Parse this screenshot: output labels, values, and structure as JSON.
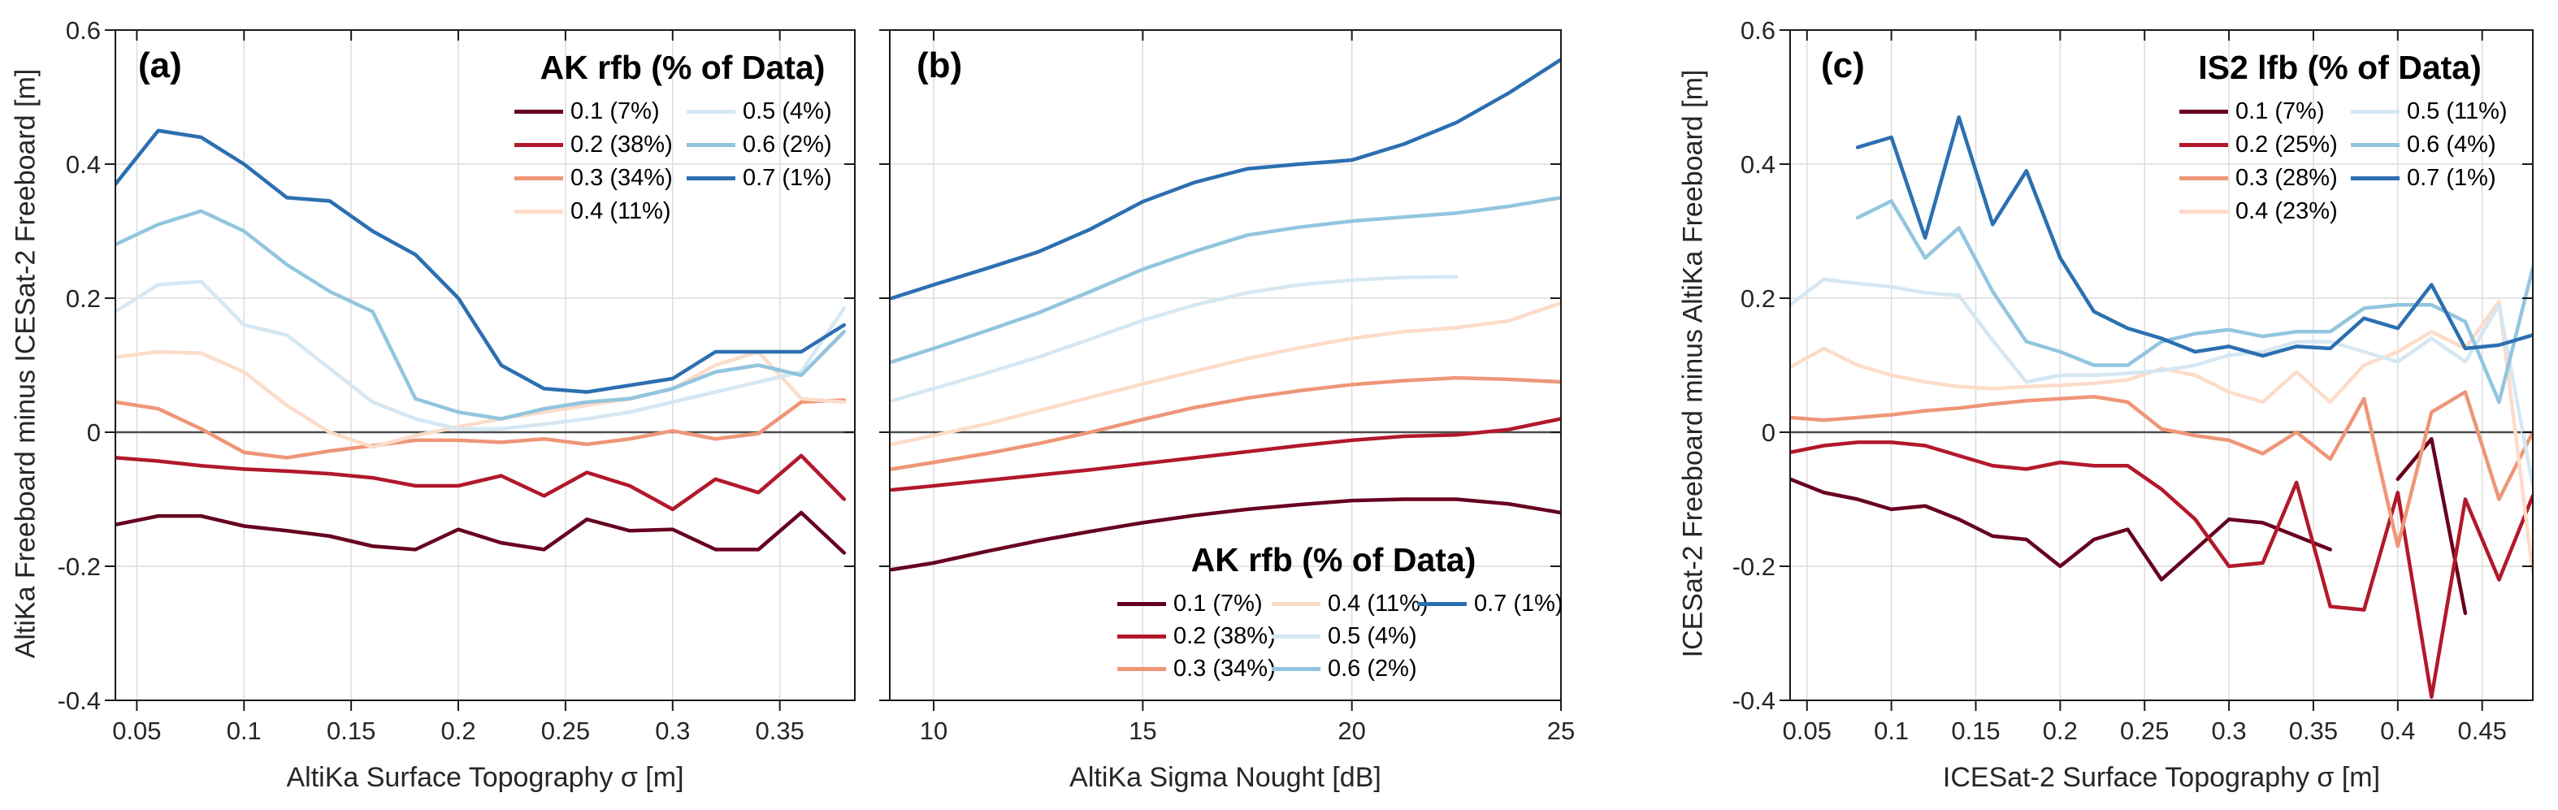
{
  "figure": {
    "background": "#ffffff",
    "frame_color": "#1a1a1a",
    "grid_color": "#dcdcdc",
    "zero_line_color": "#4d4d4d",
    "tick_label_color": "#262626"
  },
  "chart_data": [
    {
      "type": "line",
      "panel_label": "(a)",
      "xlabel": "AltiKa Surface Topography σ [m]",
      "ylabel": "AltiKa Freeboard minus ICESat-2 Freeboard [m]",
      "xlim": [
        0.04,
        0.385
      ],
      "ylim": [
        -0.4,
        0.6
      ],
      "xticks": [
        0.05,
        0.1,
        0.15,
        0.2,
        0.25,
        0.3,
        0.35
      ],
      "xtick_labels": [
        "0.05",
        "0.1",
        "0.15",
        "0.2",
        "0.25",
        "0.3",
        "0.35"
      ],
      "yticks": [
        0.6,
        0.4,
        0.2,
        0,
        -0.2,
        -0.4
      ],
      "ytick_labels": [
        "0.6",
        "0.4",
        "0.2",
        "0",
        "-0.2",
        "-0.4"
      ],
      "grid": true,
      "zero_line": true,
      "legend": {
        "title": "AK rfb (% of Data)",
        "position": "top-right",
        "columns": [
          4,
          3
        ]
      },
      "x": [
        0.04,
        0.06,
        0.08,
        0.1,
        0.12,
        0.14,
        0.16,
        0.18,
        0.2,
        0.22,
        0.24,
        0.26,
        0.28,
        0.3,
        0.32,
        0.34,
        0.36,
        0.38
      ],
      "series": [
        {
          "name": "0.1 (7%)",
          "color": "#67001f",
          "values": [
            -0.138,
            -0.125,
            -0.125,
            -0.14,
            -0.147,
            -0.155,
            -0.17,
            -0.175,
            -0.145,
            -0.165,
            -0.175,
            -0.13,
            -0.147,
            -0.145,
            -0.175,
            -0.175,
            -0.12,
            -0.18
          ]
        },
        {
          "name": "0.2 (38%)",
          "color": "#b2182b",
          "values": [
            -0.038,
            -0.043,
            -0.05,
            -0.055,
            -0.058,
            -0.062,
            -0.068,
            -0.08,
            -0.08,
            -0.065,
            -0.095,
            -0.06,
            -0.08,
            -0.115,
            -0.07,
            -0.09,
            -0.035,
            -0.1
          ]
        },
        {
          "name": "0.3 (34%)",
          "color": "#ee9677",
          "values": [
            0.045,
            0.035,
            0.005,
            -0.03,
            -0.038,
            -0.028,
            -0.02,
            -0.012,
            -0.012,
            -0.015,
            -0.01,
            -0.018,
            -0.01,
            0.002,
            -0.01,
            -0.002,
            0.045,
            0.048
          ]
        },
        {
          "name": "0.4 (11%)",
          "color": "#fcdcc9",
          "values": [
            0.112,
            0.12,
            0.118,
            0.09,
            0.04,
            0.0,
            -0.022,
            -0.005,
            0.008,
            0.02,
            0.03,
            0.04,
            0.05,
            0.065,
            0.1,
            0.12,
            0.05,
            0.045
          ]
        },
        {
          "name": "0.5 (4%)",
          "color": "#d5e7f2",
          "values": [
            0.18,
            0.22,
            0.225,
            0.16,
            0.145,
            0.095,
            0.045,
            0.02,
            0.005,
            0.005,
            0.012,
            0.02,
            0.03,
            0.045,
            0.06,
            0.075,
            0.09,
            0.185
          ]
        },
        {
          "name": "0.6 (2%)",
          "color": "#92c5de",
          "values": [
            0.28,
            0.31,
            0.33,
            0.3,
            0.25,
            0.21,
            0.18,
            0.05,
            0.03,
            0.02,
            0.035,
            0.045,
            0.05,
            0.065,
            0.09,
            0.1,
            0.085,
            0.15
          ]
        },
        {
          "name": "0.7 (1%)",
          "color": "#2c6fb1",
          "values": [
            0.37,
            0.45,
            0.44,
            0.4,
            0.35,
            0.345,
            0.3,
            0.265,
            0.2,
            0.1,
            0.065,
            0.06,
            0.07,
            0.08,
            0.12,
            0.12,
            0.12,
            0.16
          ]
        }
      ]
    },
    {
      "type": "line",
      "panel_label": "(b)",
      "xlabel": "AltiKa Sigma Nought [dB]",
      "ylabel": "",
      "xlim": [
        8.95,
        25
      ],
      "ylim": [
        -0.4,
        0.6
      ],
      "xticks": [
        10,
        15,
        20,
        25
      ],
      "xtick_labels": [
        "10",
        "15",
        "20",
        "25"
      ],
      "yticks": [
        0.6,
        0.4,
        0.2,
        0,
        -0.2,
        -0.4
      ],
      "ytick_labels": [],
      "grid": true,
      "zero_line": true,
      "legend": {
        "title": "AK rfb (% of Data)",
        "position": "bottom-right",
        "columns": [
          3,
          3,
          1
        ]
      },
      "x": [
        9,
        10,
        11.25,
        12.5,
        13.75,
        15,
        16.25,
        17.5,
        18.75,
        20,
        21.25,
        22.5,
        23.75,
        25
      ],
      "series": [
        {
          "name": "0.1 (7%)",
          "color": "#67001f",
          "values": [
            -0.205,
            -0.195,
            -0.178,
            -0.162,
            -0.148,
            -0.135,
            -0.124,
            -0.115,
            -0.108,
            -0.102,
            -0.1,
            -0.1,
            -0.107,
            -0.12
          ]
        },
        {
          "name": "0.2 (38%)",
          "color": "#b2182b",
          "values": [
            -0.086,
            -0.08,
            -0.072,
            -0.064,
            -0.056,
            -0.047,
            -0.038,
            -0.029,
            -0.02,
            -0.012,
            -0.006,
            -0.004,
            0.004,
            0.02
          ]
        },
        {
          "name": "0.3 (34%)",
          "color": "#ee9677",
          "values": [
            -0.055,
            -0.045,
            -0.032,
            -0.017,
            0.0,
            0.019,
            0.037,
            0.051,
            0.062,
            0.071,
            0.077,
            0.081,
            0.079,
            0.075
          ]
        },
        {
          "name": "0.4 (11%)",
          "color": "#fcdcc9",
          "values": [
            -0.018,
            -0.005,
            0.012,
            0.032,
            0.052,
            0.072,
            0.091,
            0.11,
            0.126,
            0.14,
            0.15,
            0.156,
            0.166,
            0.193
          ]
        },
        {
          "name": "0.5 (4%)",
          "color": "#d5e7f2",
          "values": [
            0.047,
            0.065,
            0.088,
            0.112,
            0.139,
            0.167,
            0.19,
            0.208,
            0.22,
            0.227,
            0.231,
            0.232,
            null,
            null
          ]
        },
        {
          "name": "0.6 (2%)",
          "color": "#92c5de",
          "values": [
            0.105,
            0.125,
            0.151,
            0.178,
            0.21,
            0.243,
            0.27,
            0.294,
            0.306,
            0.315,
            0.321,
            0.327,
            0.337,
            0.35
          ]
        },
        {
          "name": "0.7 (1%)",
          "color": "#2c6fb1",
          "values": [
            0.2,
            0.22,
            0.244,
            0.269,
            0.303,
            0.344,
            0.373,
            0.393,
            0.4,
            0.406,
            0.43,
            0.462,
            0.506,
            0.556
          ]
        }
      ]
    },
    {
      "type": "line",
      "panel_label": "(c)",
      "xlabel": "ICESat-2 Surface Topography σ [m]",
      "ylabel": "ICESat-2 Freeboard minus AltiKa Freeboard [m]",
      "xlim": [
        0.04,
        0.48
      ],
      "ylim": [
        -0.4,
        0.6
      ],
      "xticks": [
        0.05,
        0.1,
        0.15,
        0.2,
        0.25,
        0.3,
        0.35,
        0.4,
        0.45
      ],
      "xtick_labels": [
        "0.05",
        "0.1",
        "0.15",
        "0.2",
        "0.25",
        "0.3",
        "0.35",
        "0.4",
        "0.45"
      ],
      "yticks": [
        0.6,
        0.4,
        0.2,
        0,
        -0.2,
        -0.4
      ],
      "ytick_labels": [
        "0.6",
        "0.4",
        "0.2",
        "0",
        "-0.2",
        "-0.4"
      ],
      "grid": true,
      "zero_line": true,
      "legend": {
        "title": "IS2 lfb (% of Data)",
        "position": "top-right",
        "columns": [
          4,
          3
        ]
      },
      "x": [
        0.04,
        0.06,
        0.08,
        0.1,
        0.12,
        0.14,
        0.16,
        0.18,
        0.2,
        0.22,
        0.24,
        0.26,
        0.28,
        0.3,
        0.32,
        0.34,
        0.36,
        0.38,
        0.4,
        0.42,
        0.44,
        0.46,
        0.48
      ],
      "series": [
        {
          "name": "0.1 (7%)",
          "color": "#67001f",
          "values": [
            -0.07,
            -0.09,
            -0.1,
            -0.115,
            -0.11,
            -0.13,
            -0.155,
            -0.16,
            -0.2,
            -0.16,
            -0.145,
            -0.22,
            -0.175,
            -0.13,
            -0.135,
            -0.155,
            -0.175,
            null,
            -0.07,
            -0.01,
            -0.27,
            null,
            null
          ]
        },
        {
          "name": "0.2 (25%)",
          "color": "#b2182b",
          "values": [
            -0.03,
            -0.02,
            -0.015,
            -0.015,
            -0.02,
            -0.035,
            -0.05,
            -0.055,
            -0.045,
            -0.05,
            -0.05,
            -0.085,
            -0.13,
            -0.2,
            -0.195,
            -0.075,
            -0.26,
            -0.265,
            -0.09,
            -0.395,
            -0.1,
            -0.22,
            -0.095
          ]
        },
        {
          "name": "0.3 (28%)",
          "color": "#ee9677",
          "values": [
            0.022,
            0.018,
            0.022,
            0.026,
            0.032,
            0.036,
            0.042,
            0.047,
            0.05,
            0.053,
            0.045,
            0.005,
            -0.005,
            -0.012,
            -0.032,
            0.0,
            -0.04,
            0.05,
            -0.17,
            0.03,
            0.06,
            -0.1,
            0.0
          ]
        },
        {
          "name": "0.4 (23%)",
          "color": "#fcdcc9",
          "values": [
            0.097,
            0.125,
            0.1,
            0.085,
            0.075,
            0.068,
            0.065,
            0.068,
            0.07,
            0.073,
            0.078,
            0.095,
            0.085,
            0.06,
            0.045,
            0.09,
            0.045,
            0.1,
            0.12,
            0.15,
            0.125,
            0.195,
            -0.21
          ]
        },
        {
          "name": "0.5 (11%)",
          "color": "#d5e7f2",
          "values": [
            0.19,
            0.228,
            0.222,
            0.217,
            0.208,
            0.204,
            0.137,
            0.075,
            0.085,
            0.085,
            0.088,
            0.092,
            0.1,
            0.115,
            0.12,
            0.135,
            0.135,
            0.12,
            0.105,
            0.14,
            0.105,
            0.19,
            -0.08
          ]
        },
        {
          "name": "0.6 (4%)",
          "color": "#92c5de",
          "values": [
            null,
            null,
            0.32,
            0.345,
            0.26,
            0.305,
            0.21,
            0.135,
            0.12,
            0.1,
            0.1,
            0.135,
            0.147,
            0.153,
            0.143,
            0.15,
            0.15,
            0.185,
            0.19,
            0.19,
            0.165,
            0.045,
            0.245
          ]
        },
        {
          "name": "0.7 (1%)",
          "color": "#2c6fb1",
          "values": [
            null,
            null,
            0.425,
            0.44,
            0.29,
            0.47,
            0.31,
            0.39,
            0.26,
            0.18,
            0.155,
            0.14,
            0.12,
            0.128,
            0.114,
            0.128,
            0.125,
            0.17,
            0.155,
            0.22,
            0.125,
            0.13,
            0.145
          ]
        }
      ]
    }
  ]
}
